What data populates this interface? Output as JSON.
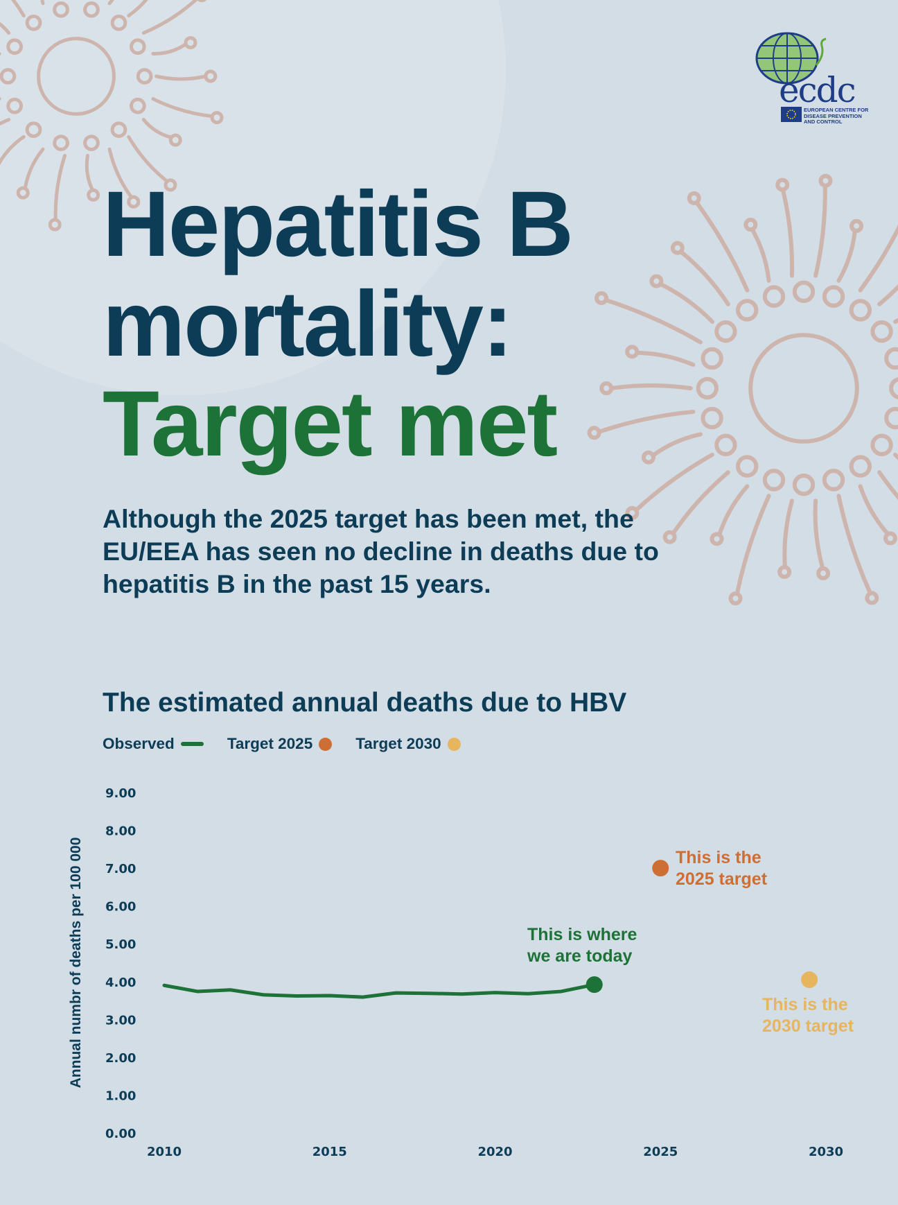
{
  "logo": {
    "wordmark": "ecdc",
    "org_name": "EUROPEAN CENTRE FOR DISEASE PREVENTION AND CONTROL"
  },
  "headline": {
    "line1": "Hepatitis B",
    "line2": "mortality:",
    "line3": "Target met"
  },
  "lead": "Although the 2025 target has been met, the EU/EEA has seen no decline in deaths due to hepatitis B in the past 15 years.",
  "colors": {
    "background": "#d3dde5",
    "navy": "#0c3c56",
    "observed": "#1d7237",
    "target_2025": "#cd6f34",
    "target_2030": "#e6b55d",
    "virus_motif": "#cdb5ad"
  },
  "chart_data": {
    "type": "line",
    "title": "The estimated annual deaths due to HBV",
    "ylabel": "Annual numbr of deaths per 100 000",
    "xlabel": "",
    "ylim": [
      0,
      9
    ],
    "xlim": [
      2010,
      2030
    ],
    "y_ticks": [
      "0.00",
      "1.00",
      "2.00",
      "3.00",
      "4.00",
      "5.00",
      "6.00",
      "7.00",
      "8.00",
      "9.00"
    ],
    "x_ticks": [
      "2010",
      "2015",
      "2020",
      "2025",
      "2030"
    ],
    "grid": false,
    "legend_position": "top-left",
    "legend": [
      {
        "label": "Observed",
        "symbol": "line",
        "color": "#1d7237"
      },
      {
        "label": "Target 2025",
        "symbol": "dot",
        "color": "#cd6f34"
      },
      {
        "label": "Target 2030",
        "symbol": "dot",
        "color": "#e6b55d"
      }
    ],
    "series": [
      {
        "name": "Observed",
        "color": "#1d7237",
        "x": [
          2010,
          2011,
          2012,
          2013,
          2014,
          2015,
          2016,
          2017,
          2018,
          2019,
          2020,
          2021,
          2022,
          2023
        ],
        "y": [
          3.9,
          3.74,
          3.78,
          3.65,
          3.62,
          3.63,
          3.59,
          3.7,
          3.69,
          3.67,
          3.71,
          3.68,
          3.74,
          3.92
        ]
      }
    ],
    "targets": [
      {
        "name": "Target 2025",
        "x": 2025,
        "y": 7.0,
        "color": "#cd6f34",
        "label_lines": [
          "This is the",
          "2025 target"
        ]
      },
      {
        "name": "Target 2030",
        "x": 2029.5,
        "y": 4.05,
        "color": "#e6b55d",
        "label_lines": [
          "This is the",
          "2030 target"
        ]
      }
    ],
    "annotations": [
      {
        "x": 2023,
        "y": 3.92,
        "label_lines": [
          "This is where",
          "we are today"
        ],
        "color": "#1d7237"
      }
    ]
  }
}
